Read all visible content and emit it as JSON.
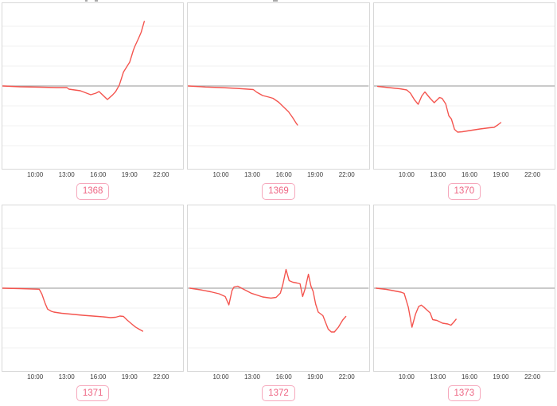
{
  "colors": {
    "line": "#f4544e",
    "zero_line": "#ababab",
    "grid": "#f0f0f0",
    "panel_border": "#d8d8d8",
    "tick_text": "#3d3d3d",
    "badge_text": "#ee6583",
    "badge_border": "#f6a8bc"
  },
  "x_axis": {
    "tick_labels": [
      "10:00",
      "13:00",
      "16:00",
      "19:00",
      "22:00"
    ],
    "tick_positions_pct": [
      18.4,
      35.6,
      52.9,
      70.1,
      87.4
    ]
  },
  "chart_data": [
    {
      "id": "1368",
      "type": "line",
      "x_range": [
        6.8,
        24.2
      ],
      "y_range": [
        -4.16,
        4.16
      ],
      "grid_y": [
        -3,
        -2,
        -1,
        1,
        2,
        3
      ],
      "zero_line": true,
      "x_tick_labels": [
        "10:00",
        "13:00",
        "16:00",
        "19:00",
        "22:00"
      ],
      "points": [
        [
          6.85,
          0
        ],
        [
          8.5,
          -0.04
        ],
        [
          10.5,
          -0.06
        ],
        [
          12.0,
          -0.08
        ],
        [
          13.0,
          -0.08
        ],
        [
          13.2,
          -0.16
        ],
        [
          14.3,
          -0.24
        ],
        [
          14.9,
          -0.36
        ],
        [
          15.3,
          -0.44
        ],
        [
          15.8,
          -0.36
        ],
        [
          16.1,
          -0.28
        ],
        [
          16.9,
          -0.68
        ],
        [
          17.4,
          -0.45
        ],
        [
          17.7,
          -0.28
        ],
        [
          18.05,
          0.05
        ],
        [
          18.45,
          0.7
        ],
        [
          19.05,
          1.2
        ],
        [
          19.4,
          1.8
        ],
        [
          19.55,
          2.0
        ],
        [
          19.9,
          2.4
        ],
        [
          20.15,
          2.7
        ],
        [
          20.45,
          3.25
        ]
      ]
    },
    {
      "id": "1369",
      "type": "line",
      "x_range": [
        6.8,
        24.2
      ],
      "y_range": [
        -4.16,
        4.16
      ],
      "grid_y": [
        -3,
        -2,
        -1,
        1,
        2,
        3
      ],
      "zero_line": true,
      "x_tick_labels": [
        "10:00",
        "13:00",
        "16:00",
        "19:00",
        "22:00"
      ],
      "points": [
        [
          6.85,
          0
        ],
        [
          8.5,
          -0.05
        ],
        [
          10.0,
          -0.08
        ],
        [
          11.5,
          -0.12
        ],
        [
          13.1,
          -0.18
        ],
        [
          13.45,
          -0.32
        ],
        [
          14.0,
          -0.48
        ],
        [
          14.6,
          -0.56
        ],
        [
          15.0,
          -0.62
        ],
        [
          15.55,
          -0.82
        ],
        [
          16.0,
          -1.05
        ],
        [
          16.5,
          -1.3
        ],
        [
          16.9,
          -1.6
        ],
        [
          17.2,
          -1.85
        ],
        [
          17.35,
          -1.96
        ]
      ]
    },
    {
      "id": "1370",
      "type": "line",
      "x_range": [
        6.8,
        24.2
      ],
      "y_range": [
        -4.16,
        4.16
      ],
      "grid_y": [
        -3,
        -2,
        -1,
        1,
        2,
        3
      ],
      "zero_line": true,
      "x_tick_labels": [
        "10:00",
        "13:00",
        "16:00",
        "19:00",
        "22:00"
      ],
      "points": [
        [
          7.15,
          -0.02
        ],
        [
          8.2,
          -0.08
        ],
        [
          9.3,
          -0.14
        ],
        [
          9.95,
          -0.2
        ],
        [
          10.3,
          -0.36
        ],
        [
          10.7,
          -0.7
        ],
        [
          11.05,
          -0.92
        ],
        [
          11.4,
          -0.5
        ],
        [
          11.7,
          -0.3
        ],
        [
          12.2,
          -0.62
        ],
        [
          12.6,
          -0.84
        ],
        [
          13.1,
          -0.58
        ],
        [
          13.35,
          -0.62
        ],
        [
          13.7,
          -0.9
        ],
        [
          14.0,
          -1.5
        ],
        [
          14.25,
          -1.66
        ],
        [
          14.55,
          -2.18
        ],
        [
          14.85,
          -2.32
        ],
        [
          15.3,
          -2.3
        ],
        [
          16.0,
          -2.24
        ],
        [
          17.0,
          -2.16
        ],
        [
          17.9,
          -2.1
        ],
        [
          18.35,
          -2.08
        ],
        [
          18.7,
          -1.96
        ],
        [
          19.0,
          -1.84
        ]
      ]
    },
    {
      "id": "1371",
      "type": "line",
      "x_range": [
        6.8,
        24.2
      ],
      "y_range": [
        -4.16,
        4.16
      ],
      "grid_y": [
        -3,
        -2,
        -1,
        1,
        2,
        3
      ],
      "zero_line": true,
      "x_tick_labels": [
        "10:00",
        "13:00",
        "16:00",
        "19:00",
        "22:00"
      ],
      "points": [
        [
          6.8,
          0
        ],
        [
          8.5,
          -0.02
        ],
        [
          10.35,
          -0.05
        ],
        [
          10.6,
          -0.3
        ],
        [
          10.9,
          -0.75
        ],
        [
          11.15,
          -1.05
        ],
        [
          11.5,
          -1.16
        ],
        [
          11.75,
          -1.2
        ],
        [
          12.5,
          -1.26
        ],
        [
          13.3,
          -1.3
        ],
        [
          14.5,
          -1.36
        ],
        [
          15.5,
          -1.4
        ],
        [
          16.5,
          -1.44
        ],
        [
          17.2,
          -1.48
        ],
        [
          17.7,
          -1.46
        ],
        [
          18.1,
          -1.4
        ],
        [
          18.45,
          -1.42
        ],
        [
          18.8,
          -1.6
        ],
        [
          19.2,
          -1.78
        ],
        [
          19.6,
          -1.95
        ],
        [
          19.95,
          -2.06
        ],
        [
          20.3,
          -2.16
        ]
      ]
    },
    {
      "id": "1372",
      "type": "line",
      "x_range": [
        6.8,
        24.2
      ],
      "y_range": [
        -4.16,
        4.16
      ],
      "grid_y": [
        -3,
        -2,
        -1,
        1,
        2,
        3
      ],
      "zero_line": true,
      "x_tick_labels": [
        "10:00",
        "13:00",
        "16:00",
        "19:00",
        "22:00"
      ],
      "points": [
        [
          7.0,
          0
        ],
        [
          8.0,
          -0.08
        ],
        [
          9.0,
          -0.18
        ],
        [
          9.8,
          -0.28
        ],
        [
          10.4,
          -0.42
        ],
        [
          10.75,
          -0.84
        ],
        [
          11.05,
          -0.12
        ],
        [
          11.25,
          0.06
        ],
        [
          11.6,
          0.1
        ],
        [
          12.9,
          -0.25
        ],
        [
          14.0,
          -0.44
        ],
        [
          14.8,
          -0.5
        ],
        [
          15.3,
          -0.46
        ],
        [
          15.7,
          -0.25
        ],
        [
          15.95,
          0.2
        ],
        [
          16.25,
          0.94
        ],
        [
          16.55,
          0.38
        ],
        [
          16.9,
          0.3
        ],
        [
          17.3,
          0.26
        ],
        [
          17.6,
          0.22
        ],
        [
          17.85,
          -0.42
        ],
        [
          18.1,
          0.0
        ],
        [
          18.4,
          0.7
        ],
        [
          18.65,
          0.1
        ],
        [
          18.85,
          -0.15
        ],
        [
          19.1,
          -0.8
        ],
        [
          19.35,
          -1.2
        ],
        [
          19.8,
          -1.38
        ],
        [
          20.3,
          -2.05
        ],
        [
          20.6,
          -2.2
        ],
        [
          20.9,
          -2.2
        ],
        [
          21.3,
          -1.95
        ],
        [
          21.7,
          -1.6
        ],
        [
          22.0,
          -1.42
        ]
      ]
    },
    {
      "id": "1373",
      "type": "line",
      "x_range": [
        6.8,
        24.2
      ],
      "y_range": [
        -4.16,
        4.16
      ],
      "grid_y": [
        -3,
        -2,
        -1,
        1,
        2,
        3
      ],
      "zero_line": true,
      "x_tick_labels": [
        "10:00",
        "13:00",
        "16:00",
        "19:00",
        "22:00"
      ],
      "points": [
        [
          7.0,
          0
        ],
        [
          8.0,
          -0.06
        ],
        [
          9.4,
          -0.2
        ],
        [
          9.7,
          -0.26
        ],
        [
          10.1,
          -0.95
        ],
        [
          10.45,
          -1.96
        ],
        [
          10.8,
          -1.3
        ],
        [
          11.1,
          -0.92
        ],
        [
          11.35,
          -0.85
        ],
        [
          11.6,
          -0.95
        ],
        [
          11.9,
          -1.1
        ],
        [
          12.2,
          -1.24
        ],
        [
          12.45,
          -1.58
        ],
        [
          12.85,
          -1.62
        ],
        [
          13.4,
          -1.76
        ],
        [
          13.9,
          -1.8
        ],
        [
          14.2,
          -1.86
        ],
        [
          14.45,
          -1.72
        ],
        [
          14.7,
          -1.56
        ]
      ]
    }
  ]
}
